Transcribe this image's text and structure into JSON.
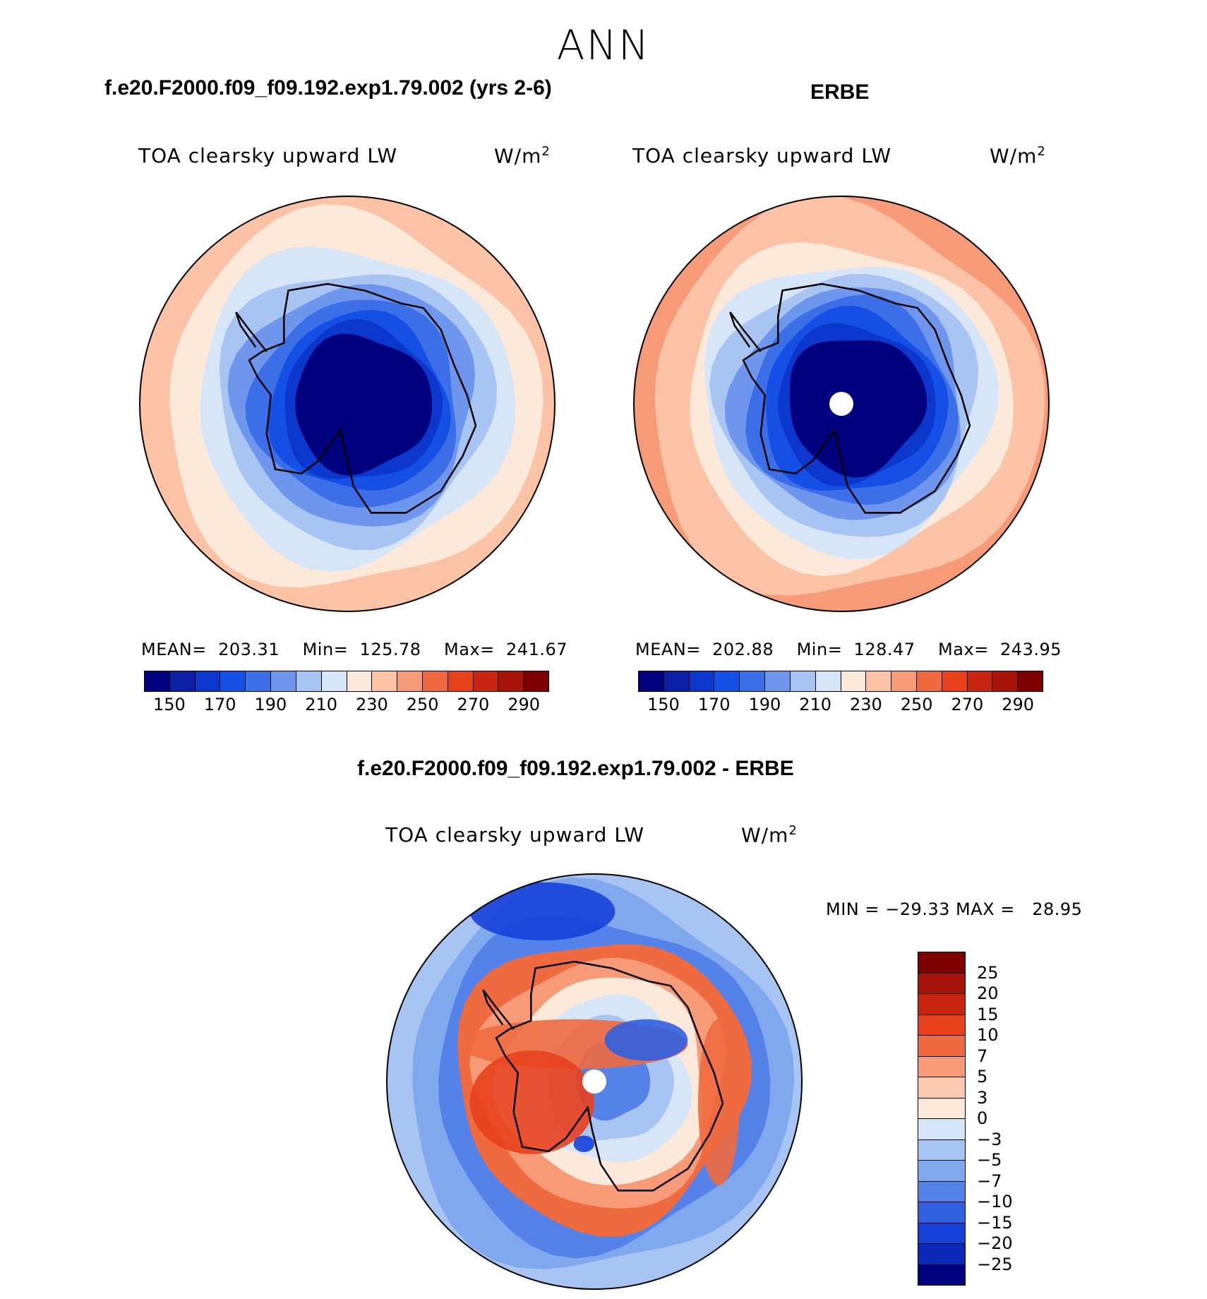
{
  "main_title": "ANN",
  "panels": [
    {
      "case_title": "f.e20.F2000.f09_f09.192.exp1.79.002 (yrs 2-6)",
      "variable": "TOA clearsky upward LW",
      "units_base": "W/m",
      "units_exp": "2",
      "stats": "MEAN=  203.31    Min=  125.78    Max=  241.67"
    },
    {
      "case_title": "ERBE",
      "variable": "TOA clearsky upward LW",
      "units_base": "W/m",
      "units_exp": "2",
      "stats": "MEAN=  202.88    Min=  128.47    Max=  243.95"
    },
    {
      "case_title": "f.e20.F2000.f09_f09.192.exp1.79.002 - ERBE",
      "variable": "TOA clearsky upward LW",
      "units_base": "W/m",
      "units_exp": "2",
      "stats": "MIN = −29.33 MAX =   28.95"
    }
  ],
  "colorbar_abs": {
    "colors": [
      "#00007f",
      "#0a1ea6",
      "#0b37cc",
      "#1550e6",
      "#3c6ee8",
      "#6e96ec",
      "#a8c4f2",
      "#d6e6f8",
      "#fde9da",
      "#fbc2a6",
      "#f79a78",
      "#f0683f",
      "#e8401d",
      "#c82410",
      "#a81409",
      "#7f0000"
    ],
    "tick_labels": [
      "150",
      "170",
      "190",
      "210",
      "230",
      "250",
      "270",
      "290"
    ],
    "tick_positions": [
      1,
      3,
      5,
      7,
      9,
      11,
      13,
      15
    ]
  },
  "colorbar_diff": {
    "colors": [
      "#7f0000",
      "#a81409",
      "#c82410",
      "#e8401d",
      "#f06a3f",
      "#f79a78",
      "#fbc8b0",
      "#fde9da",
      "#d6e6f8",
      "#a8c4f2",
      "#80a8ee",
      "#5582e8",
      "#3060e0",
      "#1540d8",
      "#0b28bb",
      "#00007f"
    ],
    "tick_labels": [
      "25",
      "20",
      "15",
      "10",
      "7",
      "5",
      "3",
      "0",
      "−3",
      "−5",
      "−7",
      "−10",
      "−15",
      "−20",
      "−25"
    ]
  },
  "map_fields": {
    "model": [
      {
        "r": 1.0,
        "color": "#fbc2a6"
      },
      {
        "r": 0.9,
        "color": "#fde9da"
      },
      {
        "r": 0.76,
        "color": "#d6e6f8"
      },
      {
        "r": 0.66,
        "color": "#a8c4f2"
      },
      {
        "r": 0.58,
        "color": "#6e96ec"
      },
      {
        "r": 0.5,
        "color": "#3c6ee8"
      },
      {
        "r": 0.43,
        "color": "#1550e6"
      },
      {
        "r": 0.38,
        "color": "#0b37cc"
      },
      {
        "r": 0.33,
        "color": "#00007f"
      }
    ],
    "obs": [
      {
        "r": 1.0,
        "color": "#f79a78"
      },
      {
        "r": 0.94,
        "color": "#fbc2a6"
      },
      {
        "r": 0.78,
        "color": "#fde9da"
      },
      {
        "r": 0.7,
        "color": "#d6e6f8"
      },
      {
        "r": 0.63,
        "color": "#a8c4f2"
      },
      {
        "r": 0.56,
        "color": "#6e96ec"
      },
      {
        "r": 0.5,
        "color": "#3c6ee8"
      },
      {
        "r": 0.44,
        "color": "#1550e6"
      },
      {
        "r": 0.38,
        "color": "#0b37cc"
      },
      {
        "r": 0.33,
        "color": "#00007f"
      }
    ],
    "diff": [
      {
        "r": 1.0,
        "color": "#a8c4f2"
      },
      {
        "r": 0.92,
        "color": "#80a8ee"
      },
      {
        "r": 0.8,
        "color": "#5582e8"
      },
      {
        "r": 0.7,
        "color": "#f06a3f"
      },
      {
        "r": 0.6,
        "color": "#f79a78"
      },
      {
        "r": 0.5,
        "color": "#fde9da"
      },
      {
        "r": 0.4,
        "color": "#d6e6f8"
      },
      {
        "r": 0.3,
        "color": "#a8c4f2"
      },
      {
        "r": 0.18,
        "color": "#5582e8"
      }
    ]
  }
}
